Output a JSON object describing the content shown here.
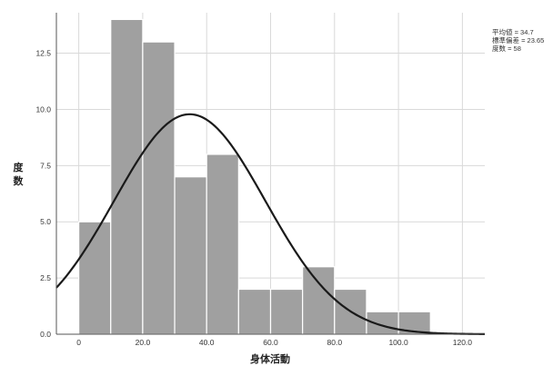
{
  "chart_data": {
    "type": "bar",
    "subtype": "histogram-with-normal-curve",
    "xlabel": "身体活動",
    "ylabel": "度数",
    "xlim": [
      -7,
      127
    ],
    "ylim": [
      0,
      14.3
    ],
    "xticks": [
      0,
      20,
      40,
      60,
      80,
      100,
      120
    ],
    "xtick_labels": [
      "0",
      "20.0",
      "40.0",
      "60.0",
      "80.0",
      "100.0",
      "120.0"
    ],
    "yticks": [
      0,
      2.5,
      5,
      7.5,
      10,
      12.5
    ],
    "ytick_labels": [
      "0.0",
      "2.5",
      "5.0",
      "7.5",
      "10.0",
      "12.5"
    ],
    "bin_edges": [
      0,
      10,
      20,
      30,
      40,
      50,
      60,
      70,
      80,
      90,
      100,
      110
    ],
    "values": [
      5,
      14,
      13,
      7,
      8,
      2,
      2,
      3,
      2,
      1,
      1
    ],
    "normal_curve": {
      "mean": 34.7,
      "sd": 23.65,
      "n": 58,
      "bin_width": 10
    },
    "stats_text": [
      "平均値 = 34.7",
      "標準偏差 = 23.65",
      "度数 = 58"
    ],
    "grid": true,
    "legend_position": "top-right",
    "colors": {
      "bar": "#a0a0a0",
      "bar_edge": "#ffffff",
      "curve": "#1a1a1a",
      "grid": "#d9d9d9",
      "axis": "#555555"
    }
  }
}
